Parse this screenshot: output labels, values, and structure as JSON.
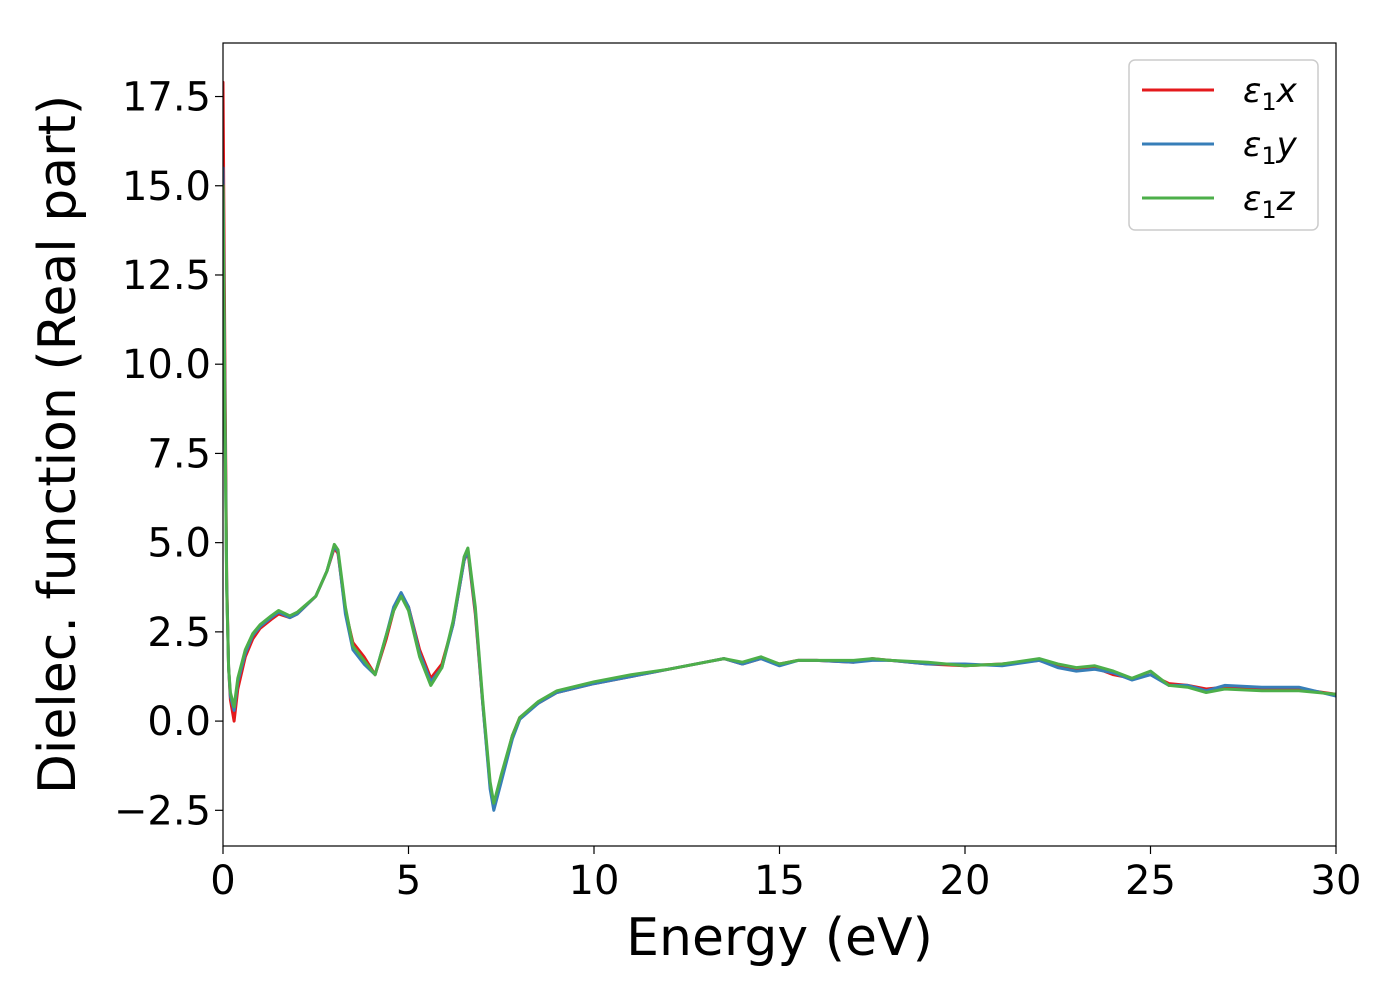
{
  "chart_data": {
    "type": "line",
    "title": "",
    "xlabel": "Energy (eV)",
    "ylabel": "Dielec. function (Real part)",
    "xlim": [
      0,
      30
    ],
    "ylim": [
      -3.5,
      19
    ],
    "xticks": [
      0,
      5,
      10,
      15,
      20,
      25,
      30
    ],
    "xtick_labels": [
      "0",
      "5",
      "10",
      "15",
      "20",
      "25",
      "30"
    ],
    "yticks": [
      -2.5,
      0.0,
      2.5,
      5.0,
      7.5,
      10.0,
      12.5,
      15.0,
      17.5
    ],
    "ytick_labels": [
      "−2.5",
      "0.0",
      "2.5",
      "5.0",
      "7.5",
      "10.0",
      "12.5",
      "15.0",
      "17.5"
    ],
    "grid": false,
    "legend_position": "top-right",
    "series": [
      {
        "name": "ε1x",
        "symbol": "ε",
        "subscript": "1",
        "component": "x",
        "color": "#e41a1c",
        "x": [
          0.0,
          0.05,
          0.1,
          0.15,
          0.2,
          0.3,
          0.4,
          0.6,
          0.8,
          1.0,
          1.3,
          1.5,
          1.8,
          2.0,
          2.5,
          2.8,
          3.0,
          3.1,
          3.3,
          3.5,
          3.8,
          4.1,
          4.4,
          4.6,
          4.8,
          5.0,
          5.3,
          5.6,
          5.9,
          6.2,
          6.5,
          6.6,
          6.8,
          7.0,
          7.2,
          7.3,
          7.5,
          7.8,
          8.0,
          8.5,
          9.0,
          10.0,
          11.0,
          12.0,
          13.0,
          13.5,
          14.0,
          14.5,
          15.0,
          15.5,
          16.0,
          17.0,
          17.5,
          18.0,
          19.0,
          20.0,
          21.0,
          22.0,
          22.5,
          23.0,
          23.5,
          24.0,
          24.5,
          25.0,
          25.5,
          26.0,
          26.5,
          27.0,
          28.0,
          29.0,
          30.0
        ],
        "y": [
          17.9,
          10.0,
          4.0,
          1.5,
          0.6,
          0.0,
          0.9,
          1.8,
          2.3,
          2.6,
          2.85,
          3.0,
          2.9,
          3.0,
          3.5,
          4.2,
          4.85,
          4.7,
          3.1,
          2.2,
          1.8,
          1.3,
          2.3,
          3.1,
          3.55,
          3.2,
          2.0,
          1.2,
          1.6,
          2.7,
          4.5,
          4.75,
          3.0,
          0.5,
          -1.8,
          -2.4,
          -1.6,
          -0.4,
          0.1,
          0.5,
          0.8,
          1.05,
          1.25,
          1.45,
          1.65,
          1.75,
          1.6,
          1.75,
          1.6,
          1.7,
          1.7,
          1.65,
          1.75,
          1.7,
          1.6,
          1.55,
          1.6,
          1.7,
          1.55,
          1.45,
          1.5,
          1.3,
          1.2,
          1.3,
          1.05,
          1.0,
          0.9,
          0.95,
          0.9,
          0.9,
          0.75
        ]
      },
      {
        "name": "ε1y",
        "symbol": "ε",
        "subscript": "1",
        "component": "y",
        "color": "#377eb8",
        "x": [
          0.0,
          0.05,
          0.1,
          0.15,
          0.2,
          0.3,
          0.4,
          0.6,
          0.8,
          1.0,
          1.3,
          1.5,
          1.8,
          2.0,
          2.5,
          2.8,
          3.0,
          3.1,
          3.3,
          3.5,
          3.8,
          4.1,
          4.4,
          4.6,
          4.8,
          5.0,
          5.3,
          5.6,
          5.9,
          6.2,
          6.5,
          6.6,
          6.8,
          7.0,
          7.2,
          7.3,
          7.5,
          7.8,
          8.0,
          8.5,
          9.0,
          10.0,
          11.0,
          12.0,
          13.0,
          13.5,
          14.0,
          14.5,
          15.0,
          15.5,
          16.0,
          17.0,
          17.5,
          18.0,
          19.0,
          20.0,
          21.0,
          22.0,
          22.5,
          23.0,
          23.5,
          24.0,
          24.5,
          25.0,
          25.5,
          26.0,
          26.5,
          27.0,
          28.0,
          29.0,
          30.0
        ],
        "y": [
          15.5,
          9.0,
          3.8,
          1.5,
          0.7,
          0.3,
          1.1,
          1.9,
          2.4,
          2.65,
          2.9,
          3.05,
          2.9,
          3.0,
          3.5,
          4.2,
          4.9,
          4.75,
          3.0,
          2.0,
          1.6,
          1.3,
          2.4,
          3.2,
          3.6,
          3.2,
          1.9,
          1.1,
          1.5,
          2.7,
          4.5,
          4.8,
          3.1,
          0.5,
          -1.9,
          -2.5,
          -1.7,
          -0.5,
          0.05,
          0.5,
          0.8,
          1.05,
          1.25,
          1.45,
          1.65,
          1.75,
          1.6,
          1.75,
          1.55,
          1.7,
          1.7,
          1.65,
          1.7,
          1.7,
          1.6,
          1.6,
          1.55,
          1.7,
          1.5,
          1.4,
          1.45,
          1.35,
          1.15,
          1.3,
          1.0,
          1.0,
          0.85,
          1.0,
          0.95,
          0.95,
          0.7
        ]
      },
      {
        "name": "ε1z",
        "symbol": "ε",
        "subscript": "1",
        "component": "z",
        "color": "#4daf4a",
        "x": [
          0.0,
          0.05,
          0.1,
          0.15,
          0.2,
          0.3,
          0.4,
          0.6,
          0.8,
          1.0,
          1.3,
          1.5,
          1.8,
          2.0,
          2.5,
          2.8,
          3.0,
          3.1,
          3.3,
          3.5,
          3.8,
          4.1,
          4.4,
          4.6,
          4.8,
          5.0,
          5.3,
          5.6,
          5.9,
          6.2,
          6.5,
          6.6,
          6.8,
          7.0,
          7.2,
          7.3,
          7.5,
          7.8,
          8.0,
          8.5,
          9.0,
          10.0,
          11.0,
          12.0,
          13.0,
          13.5,
          14.0,
          14.5,
          15.0,
          15.5,
          16.0,
          17.0,
          17.5,
          18.0,
          19.0,
          20.0,
          21.0,
          22.0,
          22.5,
          23.0,
          23.5,
          24.0,
          24.5,
          25.0,
          25.5,
          26.0,
          26.5,
          27.0,
          28.0,
          29.0,
          30.0
        ],
        "y": [
          15.0,
          8.5,
          3.7,
          1.5,
          0.8,
          0.4,
          1.2,
          2.0,
          2.45,
          2.7,
          2.95,
          3.1,
          2.95,
          3.05,
          3.5,
          4.2,
          4.95,
          4.8,
          3.2,
          2.1,
          1.7,
          1.3,
          2.4,
          3.1,
          3.5,
          3.1,
          1.8,
          1.0,
          1.5,
          2.8,
          4.6,
          4.85,
          3.2,
          0.6,
          -1.7,
          -2.3,
          -1.5,
          -0.4,
          0.1,
          0.55,
          0.85,
          1.1,
          1.3,
          1.45,
          1.65,
          1.75,
          1.65,
          1.8,
          1.6,
          1.7,
          1.7,
          1.7,
          1.75,
          1.7,
          1.65,
          1.55,
          1.6,
          1.75,
          1.6,
          1.5,
          1.55,
          1.4,
          1.2,
          1.4,
          1.0,
          0.95,
          0.8,
          0.9,
          0.85,
          0.85,
          0.75
        ]
      }
    ]
  }
}
